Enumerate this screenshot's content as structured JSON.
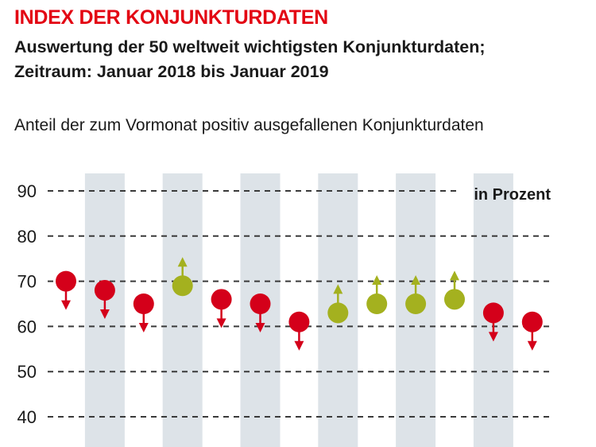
{
  "header": {
    "title": "INDEX DER KONJUNKTURDATEN",
    "subtitle_line1": "Auswertung der 50 weltweit wichtigsten Konjunkturdaten;",
    "subtitle_line2": "Zeitraum: Januar 2018 bis Januar 2019",
    "caption": "Anteil der zum Vormonat positiv ausgefallenen Konjunkturdaten"
  },
  "colors": {
    "down": "#d4001a",
    "up": "#a4b11f",
    "band": "#dde3e8",
    "grid": "#3a3a3a",
    "title": "#e30613"
  },
  "chart_data": {
    "type": "scatter",
    "unit_label": "in Prozent",
    "ylim": [
      40,
      90
    ],
    "yticks": [
      40,
      50,
      60,
      70,
      80,
      90
    ],
    "grid": true,
    "x": [
      1,
      2,
      3,
      4,
      5,
      6,
      7,
      8,
      9,
      10,
      11,
      12,
      13
    ],
    "values": [
      70,
      68,
      65,
      69,
      66,
      65,
      61,
      63,
      65,
      65,
      66,
      63,
      61
    ],
    "direction": [
      "down",
      "down",
      "down",
      "up",
      "down",
      "down",
      "down",
      "up",
      "up",
      "up",
      "up",
      "down",
      "down"
    ]
  }
}
